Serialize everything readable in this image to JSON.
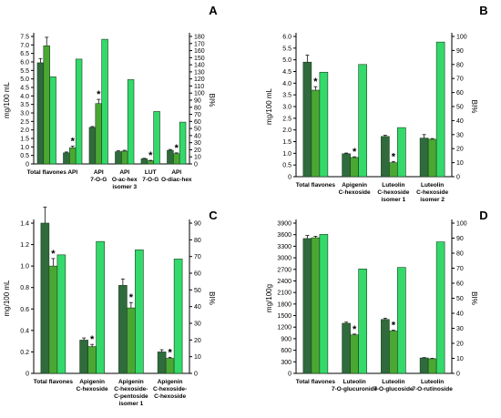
{
  "figure": {
    "colors": {
      "dark": "#2f6b3c",
      "mid": "#4aa832",
      "light": "#33d96a",
      "axis": "#000000",
      "err": "#111111"
    }
  },
  "chart_data": [
    {
      "panel": "A",
      "type": "bar",
      "ylabel_left": "mg/100 mL",
      "ylabel_right": "BI%",
      "ylim_left": [
        0,
        7.5
      ],
      "yticks_left": [
        "0",
        "0.5",
        "1.0",
        "1.5",
        "2.0",
        "2.5",
        "3.0",
        "3.5",
        "4.0",
        "4.5",
        "5.0",
        "5.5",
        "6.0",
        "6.5",
        "7.0",
        "7.5"
      ],
      "ylim_right": [
        0,
        180
      ],
      "yticks_right": [
        "0",
        "10",
        "20",
        "30",
        "40",
        "50",
        "60",
        "70",
        "80",
        "90",
        "100",
        "110",
        "120",
        "130",
        "140",
        "150",
        "160",
        "170",
        "180"
      ],
      "categories": [
        [
          "Total flavones"
        ],
        [
          "API"
        ],
        [
          "API",
          "7-O-G"
        ],
        [
          "API",
          "O-ac-hex",
          "isomer 3"
        ],
        [
          "LUT",
          "7-O-G"
        ],
        [
          "API",
          "O-diac-hex"
        ]
      ],
      "series": [
        {
          "axis": "left",
          "color": "dark",
          "values": [
            5.95,
            0.65,
            2.15,
            0.72,
            0.3,
            0.8
          ],
          "errors": [
            0.25,
            0.05,
            0.05,
            0.05,
            0.03,
            0.05
          ]
        },
        {
          "axis": "left",
          "color": "mid",
          "values": [
            6.95,
            0.95,
            3.55,
            0.75,
            0.18,
            0.6
          ],
          "errors": [
            0.5,
            0.1,
            0.25,
            0.05,
            0.03,
            0.05
          ]
        },
        {
          "axis": "right",
          "color": "light",
          "values": [
            123,
            148,
            176,
            119,
            74,
            59
          ]
        }
      ],
      "asterisks": [
        1,
        2,
        4,
        5
      ]
    },
    {
      "panel": "B",
      "type": "bar",
      "ylabel_left": "mg/100 mL",
      "ylabel_right": "BI%",
      "ylim_left": [
        0,
        6.0
      ],
      "yticks_left": [
        "0",
        "0.5",
        "1.0",
        "1.5",
        "2.0",
        "2.5",
        "3.0",
        "3.5",
        "4.0",
        "4.5",
        "5.0",
        "5.5",
        "6.0"
      ],
      "ylim_right": [
        0,
        100
      ],
      "yticks_right": [
        "0",
        "10",
        "20",
        "30",
        "40",
        "50",
        "60",
        "70",
        "80",
        "90",
        "100"
      ],
      "categories": [
        [
          "Total flavones"
        ],
        [
          "Apigenin",
          "C-hexoside"
        ],
        [
          "Luteolin",
          "C-hexoside",
          "isomer 1"
        ],
        [
          "Luteolin",
          "C-hexoside",
          "isomer 2"
        ]
      ],
      "series": [
        {
          "axis": "left",
          "color": "dark",
          "values": [
            4.9,
            0.98,
            1.72,
            1.65
          ],
          "errors": [
            0.3,
            0.03,
            0.05,
            0.15
          ]
        },
        {
          "axis": "left",
          "color": "mid",
          "values": [
            3.7,
            0.82,
            0.6,
            1.6
          ],
          "errors": [
            0.15,
            0.03,
            0.05,
            0.03
          ]
        },
        {
          "axis": "right",
          "color": "light",
          "values": [
            74.5,
            80,
            35,
            96
          ]
        }
      ],
      "asterisks": [
        0,
        1,
        2
      ]
    },
    {
      "panel": "C",
      "type": "bar",
      "ylabel_left": "mg/100 mL",
      "ylabel_right": "BI%",
      "ylim_left": [
        0,
        1.4
      ],
      "yticks_left": [
        "0",
        "0.2",
        "0.4",
        "0.6",
        "0.8",
        "1.0",
        "1.2",
        "1.4"
      ],
      "ylim_right": [
        0,
        90
      ],
      "yticks_right": [
        "0",
        "10",
        "20",
        "30",
        "40",
        "50",
        "60",
        "70",
        "80",
        "90"
      ],
      "categories": [
        [
          "Total flavones"
        ],
        [
          "Apigenin",
          "C-hexoside"
        ],
        [
          "Apigenin",
          "C-hexoside-",
          "C-pentoside",
          "isomer 1"
        ],
        [
          "Apigenin",
          "C-hexoside-",
          "C-hexoside"
        ]
      ],
      "series": [
        {
          "axis": "left",
          "color": "dark",
          "values": [
            1.4,
            0.31,
            0.82,
            0.2
          ],
          "errors": [
            0.15,
            0.02,
            0.06,
            0.02
          ]
        },
        {
          "axis": "left",
          "color": "mid",
          "values": [
            1.0,
            0.25,
            0.61,
            0.14
          ],
          "errors": [
            0.07,
            0.02,
            0.05,
            0.01
          ]
        },
        {
          "axis": "right",
          "color": "light",
          "values": [
            71,
            79,
            74,
            68.5
          ]
        }
      ],
      "asterisks": [
        0,
        1,
        2,
        3
      ]
    },
    {
      "panel": "D",
      "type": "bar",
      "ylabel_left": "mg/100g",
      "ylabel_right": "BI%",
      "ylim_left": [
        0,
        3900
      ],
      "yticks_left": [
        "0",
        "300",
        "600",
        "900",
        "1200",
        "1500",
        "1800",
        "2100",
        "2400",
        "2700",
        "3000",
        "3300",
        "3600",
        "3900"
      ],
      "ylim_right": [
        0,
        100
      ],
      "yticks_right": [
        "0",
        "10",
        "20",
        "30",
        "40",
        "50",
        "60",
        "70",
        "80",
        "90",
        "100"
      ],
      "categories": [
        [
          "Total flavones"
        ],
        [
          "Luteolin",
          "7-O-glucuronide"
        ],
        [
          "Luteolin",
          "7-O-glucoside"
        ],
        [
          "Luteolin",
          "7-O-rutinoside"
        ]
      ],
      "series": [
        {
          "axis": "left",
          "color": "dark",
          "values": [
            3500,
            1300,
            1400,
            400
          ],
          "errors": [
            80,
            30,
            30,
            10
          ]
        },
        {
          "axis": "left",
          "color": "mid",
          "values": [
            3520,
            1000,
            1100,
            380
          ],
          "errors": [
            40,
            20,
            20,
            10
          ]
        },
        {
          "axis": "right",
          "color": "light",
          "values": [
            92.5,
            69.5,
            70.5,
            87.5
          ]
        }
      ],
      "asterisks": [
        1,
        2
      ]
    }
  ]
}
